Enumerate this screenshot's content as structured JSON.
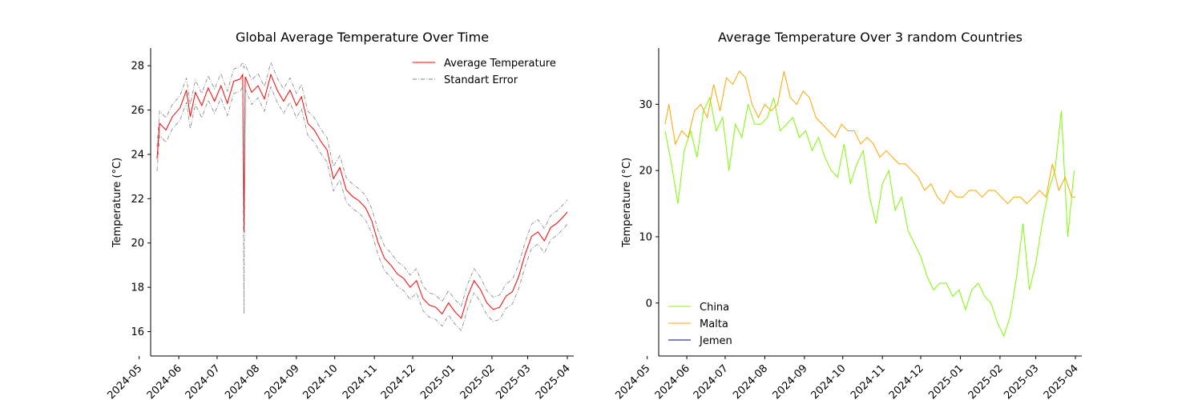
{
  "chart_data": [
    {
      "type": "line",
      "title": "Global Average Temperature Over Time",
      "xlabel": "",
      "ylabel": "Temperature (°C)",
      "x_range": [
        "2024-05-15",
        "2025-04-01"
      ],
      "ylim": [
        14.9,
        28.8
      ],
      "x_ticks": [
        "2024-05",
        "2024-06",
        "2024-07",
        "2024-08",
        "2024-09",
        "2024-10",
        "2024-11",
        "2024-12",
        "2025-01",
        "2025-02",
        "2025-03",
        "2025-04"
      ],
      "y_ticks": [
        16,
        18,
        20,
        22,
        24,
        26,
        28
      ],
      "legend": {
        "placement": "top-right",
        "frameless": true
      },
      "series": [
        {
          "name": "Average Temperature",
          "color": "#ff0000",
          "style": "solid",
          "points": [
            [
              "2024-05-15",
              23.8
            ],
            [
              "2024-05-17",
              25.4
            ],
            [
              "2024-05-22",
              25.1
            ],
            [
              "2024-05-27",
              25.7
            ],
            [
              "2024-06-02",
              26.1
            ],
            [
              "2024-06-07",
              26.9
            ],
            [
              "2024-06-10",
              25.7
            ],
            [
              "2024-06-14",
              26.8
            ],
            [
              "2024-06-19",
              26.2
            ],
            [
              "2024-06-24",
              27.0
            ],
            [
              "2024-06-29",
              26.4
            ],
            [
              "2024-07-04",
              27.1
            ],
            [
              "2024-07-09",
              26.3
            ],
            [
              "2024-07-14",
              27.3
            ],
            [
              "2024-07-19",
              27.4
            ],
            [
              "2024-07-21",
              27.6
            ],
            [
              "2024-07-22",
              20.5
            ],
            [
              "2024-07-23",
              27.5
            ],
            [
              "2024-07-28",
              26.8
            ],
            [
              "2024-08-02",
              27.1
            ],
            [
              "2024-08-07",
              26.5
            ],
            [
              "2024-08-12",
              27.6
            ],
            [
              "2024-08-17",
              26.9
            ],
            [
              "2024-08-22",
              26.4
            ],
            [
              "2024-08-27",
              26.9
            ],
            [
              "2024-09-01",
              26.2
            ],
            [
              "2024-09-05",
              26.6
            ],
            [
              "2024-09-10",
              25.4
            ],
            [
              "2024-09-15",
              25.1
            ],
            [
              "2024-09-20",
              24.6
            ],
            [
              "2024-09-25",
              24.2
            ],
            [
              "2024-09-30",
              22.9
            ],
            [
              "2024-10-05",
              23.4
            ],
            [
              "2024-10-10",
              22.4
            ],
            [
              "2024-10-15",
              22.1
            ],
            [
              "2024-10-20",
              21.9
            ],
            [
              "2024-10-25",
              21.6
            ],
            [
              "2024-10-30",
              21.0
            ],
            [
              "2024-11-04",
              20.0
            ],
            [
              "2024-11-09",
              19.3
            ],
            [
              "2024-11-14",
              19.0
            ],
            [
              "2024-11-19",
              18.6
            ],
            [
              "2024-11-24",
              18.4
            ],
            [
              "2024-11-29",
              18.0
            ],
            [
              "2024-12-04",
              18.3
            ],
            [
              "2024-12-09",
              17.5
            ],
            [
              "2024-12-14",
              17.2
            ],
            [
              "2024-12-19",
              17.1
            ],
            [
              "2024-12-24",
              16.8
            ],
            [
              "2024-12-29",
              17.3
            ],
            [
              "2025-01-03",
              16.9
            ],
            [
              "2025-01-08",
              16.6
            ],
            [
              "2025-01-13",
              17.6
            ],
            [
              "2025-01-18",
              18.3
            ],
            [
              "2025-01-23",
              17.9
            ],
            [
              "2025-01-28",
              17.3
            ],
            [
              "2025-02-02",
              17.0
            ],
            [
              "2025-02-07",
              17.1
            ],
            [
              "2025-02-12",
              17.6
            ],
            [
              "2025-02-17",
              17.8
            ],
            [
              "2025-02-22",
              18.5
            ],
            [
              "2025-02-27",
              19.5
            ],
            [
              "2025-03-04",
              20.3
            ],
            [
              "2025-03-09",
              20.5
            ],
            [
              "2025-03-14",
              20.1
            ],
            [
              "2025-03-19",
              20.7
            ],
            [
              "2025-03-24",
              20.9
            ],
            [
              "2025-03-29",
              21.2
            ],
            [
              "2025-04-01",
              21.4
            ]
          ]
        },
        {
          "name": "Standart Error",
          "color": "#808080",
          "style": "dashdot",
          "band_offset": 0.55,
          "outlier": {
            "date": "2024-07-22",
            "low": 16.8,
            "high": 27.9
          }
        }
      ]
    },
    {
      "type": "line",
      "title": "Average Temperature Over 3 random Countries",
      "xlabel": "",
      "ylabel": "Temperature (°C)",
      "x_range": [
        "2024-05-15",
        "2025-04-01"
      ],
      "ylim": [
        -8,
        38.5
      ],
      "x_ticks": [
        "2024-05",
        "2024-06",
        "2024-07",
        "2024-08",
        "2024-09",
        "2024-10",
        "2024-11",
        "2024-12",
        "2025-01",
        "2025-02",
        "2025-03",
        "2025-04"
      ],
      "y_ticks": [
        0,
        10,
        20,
        30
      ],
      "legend": {
        "placement": "bottom-left",
        "frameless": true
      },
      "series": [
        {
          "name": "China",
          "color": "#7cfc00",
          "points": [
            [
              "2024-05-15",
              26
            ],
            [
              "2024-05-20",
              21
            ],
            [
              "2024-05-25",
              15
            ],
            [
              "2024-05-30",
              23
            ],
            [
              "2024-06-04",
              26
            ],
            [
              "2024-06-09",
              22
            ],
            [
              "2024-06-14",
              29
            ],
            [
              "2024-06-19",
              31
            ],
            [
              "2024-06-24",
              26
            ],
            [
              "2024-06-29",
              28
            ],
            [
              "2024-07-04",
              20
            ],
            [
              "2024-07-09",
              27
            ],
            [
              "2024-07-14",
              25
            ],
            [
              "2024-07-19",
              30
            ],
            [
              "2024-07-24",
              27
            ],
            [
              "2024-07-29",
              27
            ],
            [
              "2024-08-03",
              28
            ],
            [
              "2024-08-08",
              31
            ],
            [
              "2024-08-13",
              26
            ],
            [
              "2024-08-18",
              27
            ],
            [
              "2024-08-23",
              28
            ],
            [
              "2024-08-28",
              25
            ],
            [
              "2024-09-02",
              26
            ],
            [
              "2024-09-07",
              23
            ],
            [
              "2024-09-12",
              25
            ],
            [
              "2024-09-17",
              22
            ],
            [
              "2024-09-22",
              20
            ],
            [
              "2024-09-27",
              19
            ],
            [
              "2024-10-02",
              24
            ],
            [
              "2024-10-07",
              18
            ],
            [
              "2024-10-12",
              21
            ],
            [
              "2024-10-17",
              23
            ],
            [
              "2024-10-22",
              16
            ],
            [
              "2024-10-27",
              12
            ],
            [
              "2024-11-01",
              18
            ],
            [
              "2024-11-06",
              20
            ],
            [
              "2024-11-11",
              14
            ],
            [
              "2024-11-16",
              16
            ],
            [
              "2024-11-21",
              11
            ],
            [
              "2024-11-26",
              9
            ],
            [
              "2024-12-01",
              7
            ],
            [
              "2024-12-06",
              4
            ],
            [
              "2024-12-11",
              2
            ],
            [
              "2024-12-16",
              3
            ],
            [
              "2024-12-21",
              3
            ],
            [
              "2024-12-26",
              1
            ],
            [
              "2024-12-31",
              2
            ],
            [
              "2025-01-05",
              -1
            ],
            [
              "2025-01-10",
              2
            ],
            [
              "2025-01-15",
              3
            ],
            [
              "2025-01-20",
              1
            ],
            [
              "2025-01-25",
              0
            ],
            [
              "2025-01-30",
              -3
            ],
            [
              "2025-02-04",
              -5
            ],
            [
              "2025-02-09",
              -2
            ],
            [
              "2025-02-14",
              4
            ],
            [
              "2025-02-19",
              12
            ],
            [
              "2025-02-24",
              2
            ],
            [
              "2025-03-01",
              6
            ],
            [
              "2025-03-06",
              12
            ],
            [
              "2025-03-11",
              17
            ],
            [
              "2025-03-16",
              20
            ],
            [
              "2025-03-21",
              29
            ],
            [
              "2025-03-26",
              10
            ],
            [
              "2025-03-31",
              20
            ]
          ]
        },
        {
          "name": "Malta",
          "color": "#ffa500",
          "points": [
            [
              "2024-05-15",
              27
            ],
            [
              "2024-05-18",
              30
            ],
            [
              "2024-05-23",
              24
            ],
            [
              "2024-05-28",
              26
            ],
            [
              "2024-06-02",
              25
            ],
            [
              "2024-06-07",
              29
            ],
            [
              "2024-06-12",
              30
            ],
            [
              "2024-06-17",
              28
            ],
            [
              "2024-06-22",
              33
            ],
            [
              "2024-06-27",
              29
            ],
            [
              "2024-07-02",
              34
            ],
            [
              "2024-07-07",
              33
            ],
            [
              "2024-07-12",
              35
            ],
            [
              "2024-07-17",
              34
            ],
            [
              "2024-07-22",
              30
            ],
            [
              "2024-07-27",
              28
            ],
            [
              "2024-08-01",
              30
            ],
            [
              "2024-08-06",
              29
            ],
            [
              "2024-08-11",
              30
            ],
            [
              "2024-08-16",
              35
            ],
            [
              "2024-08-21",
              31
            ],
            [
              "2024-08-26",
              30
            ],
            [
              "2024-08-31",
              32
            ],
            [
              "2024-09-05",
              31
            ],
            [
              "2024-09-10",
              28
            ],
            [
              "2024-09-15",
              27
            ],
            [
              "2024-09-20",
              26
            ],
            [
              "2024-09-25",
              25
            ],
            [
              "2024-09-30",
              27
            ],
            [
              "2024-10-05",
              26
            ],
            [
              "2024-10-10",
              26
            ],
            [
              "2024-10-15",
              24
            ],
            [
              "2024-10-20",
              25
            ],
            [
              "2024-10-25",
              24
            ],
            [
              "2024-10-30",
              22
            ],
            [
              "2024-11-04",
              23
            ],
            [
              "2024-11-09",
              22
            ],
            [
              "2024-11-14",
              21
            ],
            [
              "2024-11-19",
              21
            ],
            [
              "2024-11-24",
              20
            ],
            [
              "2024-11-29",
              19
            ],
            [
              "2024-12-04",
              17
            ],
            [
              "2024-12-09",
              18
            ],
            [
              "2024-12-14",
              16
            ],
            [
              "2024-12-19",
              15
            ],
            [
              "2024-12-24",
              17
            ],
            [
              "2024-12-29",
              16
            ],
            [
              "2025-01-03",
              16
            ],
            [
              "2025-01-08",
              17
            ],
            [
              "2025-01-13",
              17
            ],
            [
              "2025-01-18",
              16
            ],
            [
              "2025-01-23",
              17
            ],
            [
              "2025-01-28",
              17
            ],
            [
              "2025-02-02",
              16
            ],
            [
              "2025-02-07",
              15
            ],
            [
              "2025-02-12",
              16
            ],
            [
              "2025-02-17",
              16
            ],
            [
              "2025-02-22",
              15
            ],
            [
              "2025-02-27",
              16
            ],
            [
              "2025-03-04",
              17
            ],
            [
              "2025-03-09",
              16
            ],
            [
              "2025-03-14",
              21
            ],
            [
              "2025-03-19",
              17
            ],
            [
              "2025-03-24",
              19
            ],
            [
              "2025-03-29",
              16
            ],
            [
              "2025-04-01",
              16
            ]
          ]
        },
        {
          "name": "Jemen",
          "color": "#000080",
          "points": []
        }
      ]
    }
  ]
}
